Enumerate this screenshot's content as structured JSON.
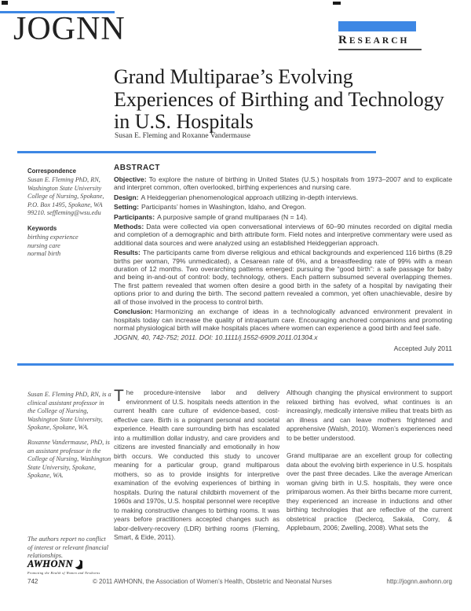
{
  "colors": {
    "accent_blue": "#3d87e4",
    "rule_dark": "#4f4f4f"
  },
  "masthead": {
    "journal": "JOGNN",
    "section": "RESEARCH"
  },
  "article": {
    "title_lines": [
      "Grand Multiparae’s Evolving",
      "Experiences of Birthing and Technology",
      "in U.S. Hospitals"
    ],
    "authors": "Susan E. Fleming and Roxanne Vandermause"
  },
  "sidebar": {
    "correspondence_label": "Correspondence",
    "correspondence_text": "Susan E. Fleming PhD, RN, Washington State University College of Nursing, Spokane, P.O. Box 1495, Spokane, WA 99210. seffleming@wsu.edu",
    "keywords_label": "Keywords",
    "keywords": [
      "birthing experience",
      "nursing care",
      "normal birth"
    ],
    "bio_fleming": "Susan E. Fleming PhD, RN, is a clinical assistant professor in the College of Nursing, Washington State University, Spokane, Spokane, WA.",
    "bio_vandermause": "Roxanne Vandermause, PhD, is an assistant professor in the College of Nursing, Washington State University, Spokane, Spokane, WA.",
    "disclosure": "The authors report no conflict of interest or relevant financial relationships.",
    "logo_text": "AWHONN",
    "logo_tagline": "Promoting the Health of Women and Newborns"
  },
  "abstract": {
    "heading": "ABSTRACT",
    "entries": [
      {
        "label": "Objective:",
        "text": "To explore the nature of birthing in United States (U.S.) hospitals from 1973–2007 and to explicate and interpret common, often overlooked, birthing experiences and nursing care."
      },
      {
        "label": "Design:",
        "text": "A Heideggerian phenomenological approach utilizing in-depth interviews."
      },
      {
        "label": "Setting:",
        "text": "Participants’ homes in Washington, Idaho, and Oregon."
      },
      {
        "label": "Participants:",
        "text": "A purposive sample of grand multiparaes (N = 14)."
      },
      {
        "label": "Methods:",
        "text": "Data were collected via open conversational interviews of 60–90 minutes recorded on digital media and completion of a demographic and birth attribute form. Field notes and interpretive commentary were used as additional data sources and were analyzed using an established Heideggerian approach."
      },
      {
        "label": "Results:",
        "text": "The participants came from diverse religious and ethical backgrounds and experienced 116 births (8.29 births per woman, 79% unmedicated), a Cesarean rate of 6%, and a breastfeeding rate of 99% with a mean duration of 12 months. Two overarching patterns emerged: pursuing the “good birth”: a safe passage for baby and being in-and-out of control: body, technology, others. Each pattern subsumed several overlapping themes. The first pattern revealed that women often desire a good birth in the safety of a hospital by navigating their options prior to and during the birth. The second pattern revealed a common, yet often unachievable, desire by all of those involved in the process to control birth."
      },
      {
        "label": "Conclusion:",
        "text": "Harmonizing an exchange of ideas in a technologically advanced environment prevalent in hospitals today can increase the quality of intrapartum care. Encouraging anchored companions and promoting normal physiological birth will make hospitals places where women can experience a good birth and feel safe."
      }
    ],
    "citation": "JOGNN, 40, 742-752; 2011.",
    "doi": "DOI: 10.1111/j.1552-6909.2011.01304.x",
    "accepted": "Accepted July 2011"
  },
  "body": {
    "column1": {
      "dropcap": "T",
      "text": "he procedure-intensive labor and delivery environment of U.S. hospitals needs attention in the current health care culture of evidence-based, cost-effective care. Birth is a poignant personal and societal experience. Health care surrounding birth has escalated into a multimillion dollar industry, and care providers and citizens are invested financially and emotionally in how birth occurs. We conducted this study to uncover meaning for a particular group, grand multiparous mothers, so as to provide insights for interpretive examination of the evolving experiences of birthing in hospitals. During the natural childbirth movement of the 1960s and 1970s, U.S. hospital personnel were receptive to making constructive changes to birthing rooms. It was years before practitioners accepted changes such as labor-delivery-recovery (LDR) birthing rooms (Fleming, Smart, & Eide, 2011)."
    },
    "column2": {
      "paragraphs": [
        "Although changing the physical environment to support relaxed birthing has evolved, what continues is an increasingly, medically intensive milieu that treats birth as an illness and can leave mothers frightened and apprehensive (Walsh, 2010). Women’s experiences need to be better understood.",
        "Grand multiparae are an excellent group for collecting data about the evolving birth experience in U.S. hospitals over the past three decades. Like the average American woman giving birth in U.S. hospitals, they were once primiparous women. As their births became more current, they experienced an increase in inductions and other birthing technologies that are reflective of the current obstetrical practice (Declercq, Sakala, Corry, & Applebaum, 2006; Zwelling, 2008). What sets the"
      ]
    }
  },
  "footer": {
    "page_number": "742",
    "copyright": "© 2011 AWHONN, the Association of Women’s Health, Obstetric and Neonatal Nurses",
    "url": "http://jognn.awhonn.org"
  }
}
